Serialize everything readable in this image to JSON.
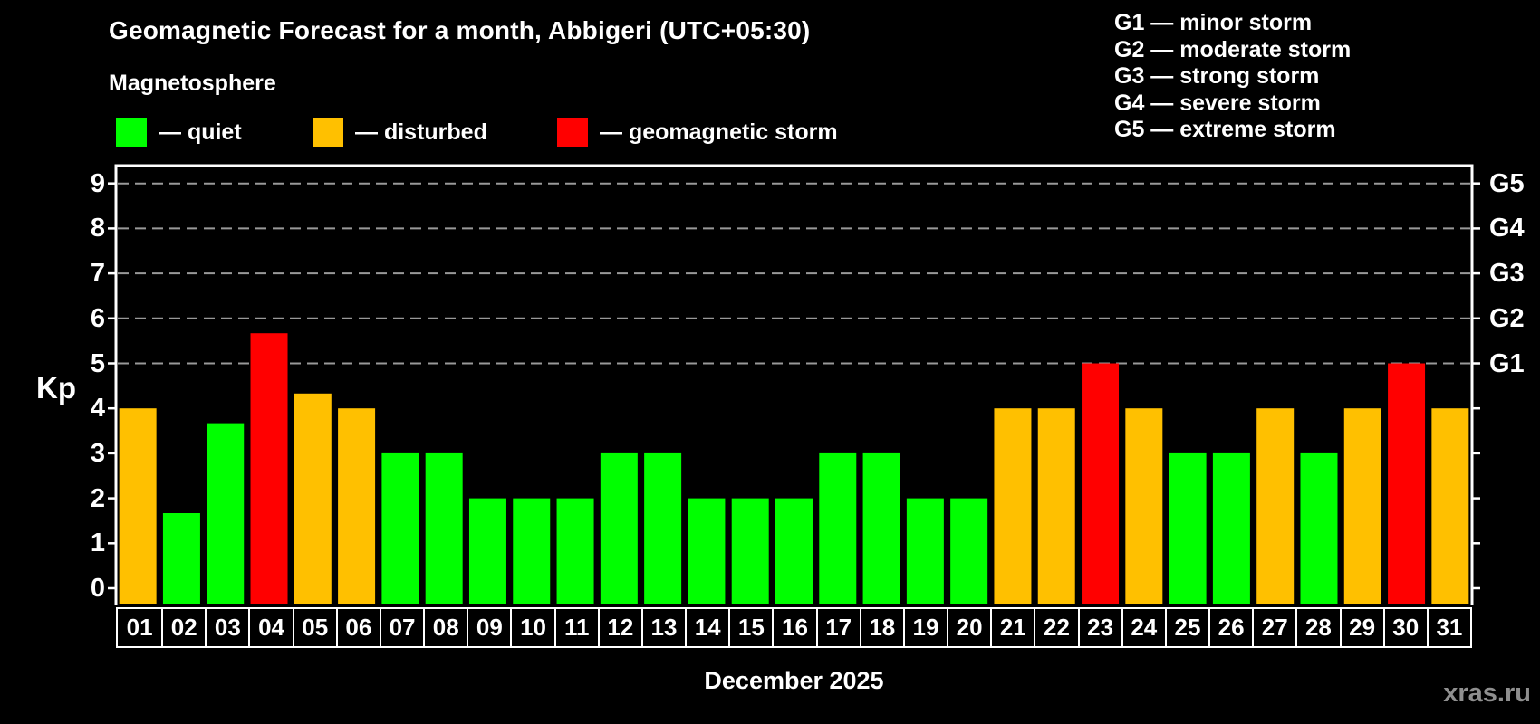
{
  "header": {
    "title": "Geomagnetic Forecast for a month, Abbigeri (UTC+05:30)",
    "subtitle": "Magnetosphere"
  },
  "legend": {
    "items": [
      {
        "category": "quiet",
        "label": "— quiet",
        "color": "#00ff00"
      },
      {
        "category": "disturbed",
        "label": "— disturbed",
        "color": "#ffc000"
      },
      {
        "category": "storm",
        "label": "— geomagnetic storm",
        "color": "#ff0000"
      }
    ]
  },
  "storm_scale_legend": {
    "items": [
      "G1 — minor storm",
      "G2 — moderate storm",
      "G3 — strong storm",
      "G4 — severe storm",
      "G5 — extreme storm"
    ]
  },
  "chart_data": {
    "type": "bar",
    "title": "Geomagnetic Forecast for a month, Abbigeri (UTC+05:30)",
    "subtitle": "Magnetosphere",
    "ylabel": "Kp",
    "xlabel": "December 2025",
    "categories": [
      "01",
      "02",
      "03",
      "04",
      "05",
      "06",
      "07",
      "08",
      "09",
      "10",
      "11",
      "12",
      "13",
      "14",
      "15",
      "16",
      "17",
      "18",
      "19",
      "20",
      "21",
      "22",
      "23",
      "24",
      "25",
      "26",
      "27",
      "28",
      "29",
      "30",
      "31"
    ],
    "series": [
      {
        "name": "Kp forecast",
        "values": [
          4,
          1.67,
          3.67,
          5.67,
          4.33,
          4,
          3,
          3,
          2,
          2,
          2,
          3,
          3,
          2,
          2,
          2,
          3,
          3,
          2,
          2,
          4,
          4,
          5,
          4,
          3,
          3,
          4,
          3,
          4,
          5,
          4
        ]
      }
    ],
    "point_categories": [
      "disturbed",
      "quiet",
      "quiet",
      "storm",
      "disturbed",
      "disturbed",
      "quiet",
      "quiet",
      "quiet",
      "quiet",
      "quiet",
      "quiet",
      "quiet",
      "quiet",
      "quiet",
      "quiet",
      "quiet",
      "quiet",
      "quiet",
      "quiet",
      "disturbed",
      "disturbed",
      "storm",
      "disturbed",
      "quiet",
      "quiet",
      "disturbed",
      "quiet",
      "disturbed",
      "storm",
      "disturbed"
    ],
    "colors": {
      "quiet": "#00ff00",
      "disturbed": "#ffc000",
      "storm": "#ff0000"
    },
    "background_color": "#000000",
    "axis_color": "#ffffff",
    "gridline_color": "#999999",
    "ylim": [
      -0.36,
      9.4
    ],
    "y_ticks": [
      0,
      1,
      2,
      3,
      4,
      5,
      6,
      7,
      8,
      9
    ],
    "right_axis_ticks": [
      {
        "label": "G1",
        "kp": 5
      },
      {
        "label": "G2",
        "kp": 6
      },
      {
        "label": "G3",
        "kp": 7
      },
      {
        "label": "G4",
        "kp": 8
      },
      {
        "label": "G5",
        "kp": 9
      }
    ],
    "gridlines_at": [
      5,
      6,
      7,
      8,
      9
    ],
    "grid": "horizontal dashed at storm levels only",
    "legend_position": "top"
  },
  "footer": {
    "watermark": "xras.ru"
  }
}
